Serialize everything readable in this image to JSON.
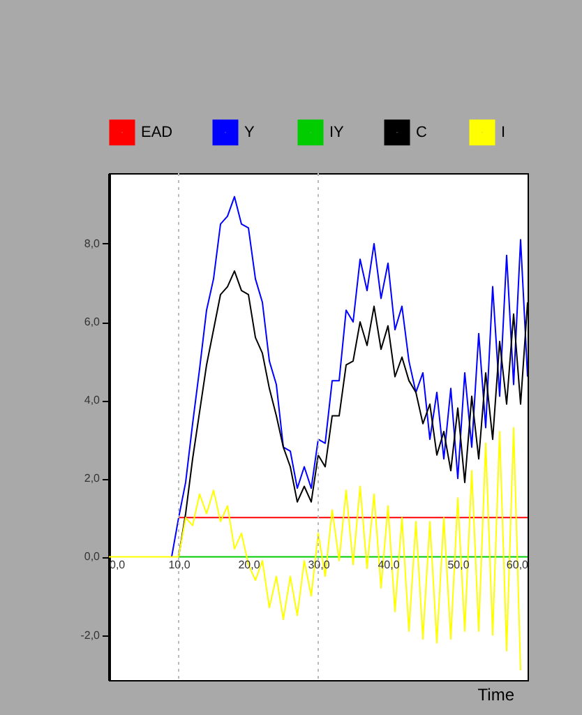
{
  "chart_data": {
    "type": "line",
    "xlabel": "Time",
    "x": [
      0,
      1,
      2,
      3,
      4,
      5,
      6,
      7,
      8,
      9,
      10,
      11,
      12,
      13,
      14,
      15,
      16,
      17,
      18,
      19,
      20,
      21,
      22,
      23,
      24,
      25,
      26,
      27,
      28,
      29,
      30,
      31,
      32,
      33,
      34,
      35,
      36,
      37,
      38,
      39,
      40,
      41,
      42,
      43,
      44,
      45,
      46,
      47,
      48,
      49,
      50,
      51,
      52,
      53,
      54,
      55,
      56,
      57,
      58,
      59,
      60
    ],
    "series": [
      {
        "name": "EAD",
        "color": "#ff0000",
        "values": [
          null,
          null,
          null,
          null,
          null,
          null,
          null,
          null,
          null,
          null,
          1,
          1,
          1,
          1,
          1,
          1,
          1,
          1,
          1,
          1,
          1,
          1,
          1,
          1,
          1,
          1,
          1,
          1,
          1,
          1,
          1,
          1,
          1,
          1,
          1,
          1,
          1,
          1,
          1,
          1,
          1,
          1,
          1,
          1,
          1,
          1,
          1,
          1,
          1,
          1,
          1,
          1,
          1,
          1,
          1,
          1,
          1,
          1,
          1,
          1,
          1
        ]
      },
      {
        "name": "Y",
        "color": "#0000ff",
        "values": [
          null,
          null,
          null,
          null,
          null,
          null,
          null,
          null,
          null,
          0,
          1.0,
          1.9,
          3.4,
          4.8,
          6.3,
          7.1,
          8.5,
          8.7,
          9.2,
          8.5,
          8.4,
          7.1,
          6.5,
          5.0,
          4.4,
          2.8,
          2.7,
          1.75,
          2.3,
          1.75,
          3.0,
          2.9,
          4.5,
          4.5,
          6.3,
          6.0,
          7.6,
          6.8,
          8.0,
          6.6,
          7.5,
          5.8,
          6.4,
          5.0,
          4.2,
          4.7,
          3.0,
          4.2,
          2.5,
          4.3,
          2.0,
          4.7,
          2.8,
          5.7,
          3.3,
          6.9,
          4.1,
          7.7,
          4.4,
          8.1,
          4.6
        ]
      },
      {
        "name": "IY",
        "color": "#00cc00",
        "values": [
          null,
          null,
          null,
          null,
          null,
          null,
          null,
          null,
          null,
          null,
          0,
          0,
          0,
          0,
          0,
          0,
          0,
          0,
          0,
          0,
          0,
          0,
          0,
          0,
          0,
          0,
          0,
          0,
          0,
          0,
          0,
          0,
          0,
          0,
          0,
          0,
          0,
          0,
          0,
          0,
          0,
          0,
          0,
          0,
          0,
          0,
          0,
          0,
          0,
          0,
          0,
          0,
          0,
          0,
          0,
          0,
          0,
          0,
          0,
          0,
          0
        ]
      },
      {
        "name": "C",
        "color": "#000000",
        "values": [
          null,
          null,
          null,
          null,
          null,
          null,
          null,
          null,
          null,
          null,
          0,
          1.1,
          2.5,
          3.7,
          4.9,
          5.8,
          6.7,
          6.9,
          7.3,
          6.8,
          6.7,
          5.6,
          5.2,
          4.3,
          3.6,
          2.8,
          2.3,
          1.4,
          1.8,
          1.4,
          2.6,
          2.3,
          3.6,
          3.6,
          4.9,
          5.0,
          6.0,
          5.4,
          6.4,
          5.3,
          5.9,
          4.6,
          5.1,
          4.5,
          4.2,
          3.4,
          3.9,
          2.6,
          3.2,
          2.2,
          3.8,
          1.9,
          4.1,
          2.5,
          4.7,
          3.0,
          5.5,
          3.9,
          6.2,
          3.9,
          6.5
        ]
      },
      {
        "name": "I",
        "color": "#ffff00",
        "values": [
          0,
          0,
          0,
          0,
          0,
          0,
          0,
          0,
          0,
          0,
          0,
          1.0,
          0.8,
          1.6,
          1.1,
          1.7,
          0.9,
          1.3,
          0.2,
          0.6,
          -0.2,
          -0.6,
          -0.1,
          -1.3,
          -0.5,
          -1.6,
          -0.5,
          -1.5,
          -0.1,
          -1.0,
          0.6,
          -0.5,
          1.2,
          -0.1,
          1.7,
          -0.2,
          1.8,
          -0.3,
          1.6,
          -0.8,
          1.3,
          -1.4,
          1.0,
          -1.9,
          0.9,
          -2.1,
          0.9,
          -2.2,
          1.0,
          -2.1,
          1.5,
          -1.9,
          2.2,
          -1.9,
          2.9,
          -2.0,
          3.2,
          -2.4,
          3.3,
          -2.9,
          null
        ]
      }
    ],
    "xlim": [
      0,
      60
    ],
    "xticks": [
      {
        "value": 0,
        "label": "0,0"
      },
      {
        "value": 10,
        "label": "10,0"
      },
      {
        "value": 20,
        "label": "20,0"
      },
      {
        "value": 30,
        "label": "30,0"
      },
      {
        "value": 40,
        "label": "40,0"
      },
      {
        "value": 50,
        "label": "50,0"
      },
      {
        "value": 60,
        "label": "60,0"
      }
    ],
    "ylim": [
      -3.15,
      9.8
    ],
    "yticks": [
      {
        "value": -2,
        "label": "-2,0"
      },
      {
        "value": 0,
        "label": "0,0"
      },
      {
        "value": 2,
        "label": "2,0"
      },
      {
        "value": 4,
        "label": "4,0"
      },
      {
        "value": 6,
        "label": "6,0"
      },
      {
        "value": 8,
        "label": "8,0"
      }
    ],
    "ref_lines": [
      {
        "axis": "x",
        "value": 10,
        "color": "#bbbbbb",
        "line_style": "dotted"
      },
      {
        "axis": "x",
        "value": 30,
        "color": "#bbbbbb",
        "line_style": "dotted"
      }
    ],
    "legend": "top",
    "grid": false,
    "marker": "none",
    "line_style": "solid"
  }
}
